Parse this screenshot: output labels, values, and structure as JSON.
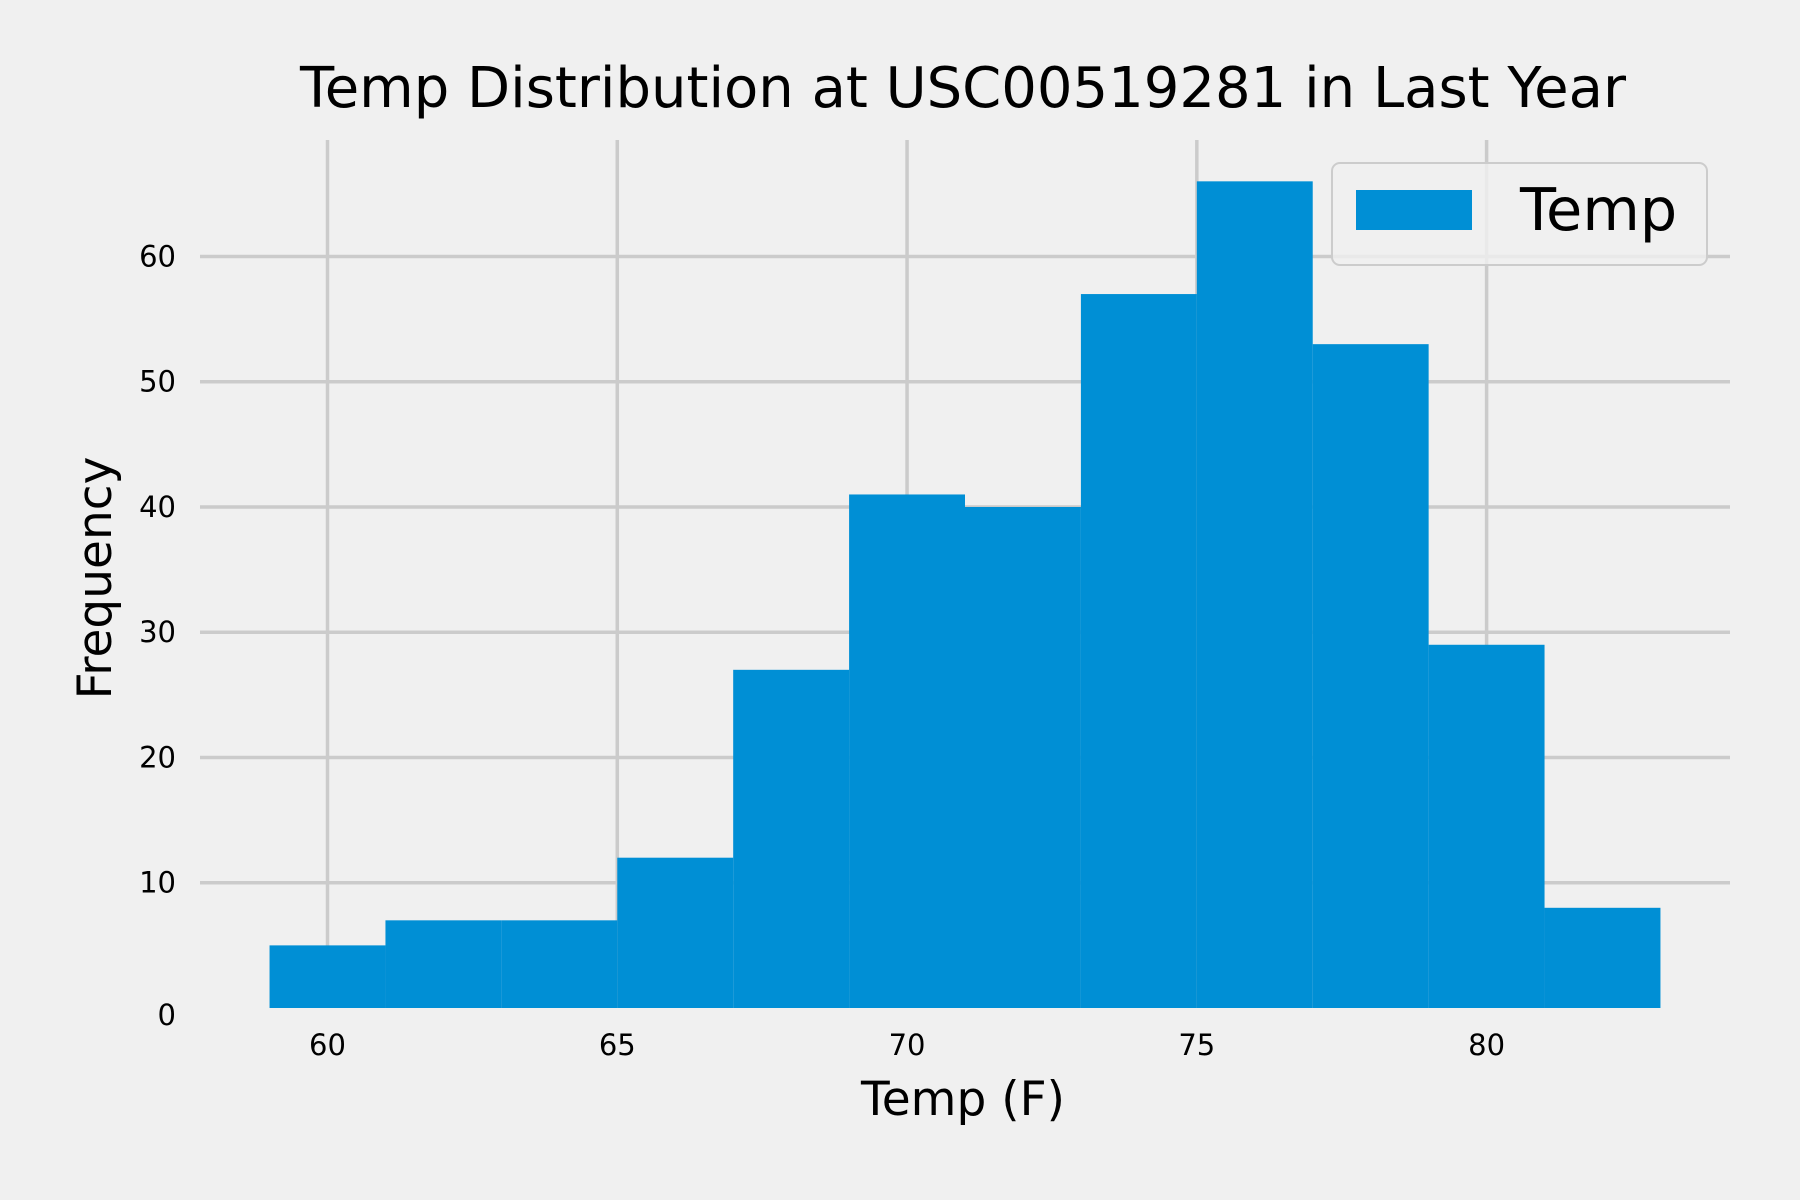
{
  "chart_data": {
    "type": "bar",
    "subtype": "histogram",
    "title": "Temp Distribution at USC00519281 in Last Year",
    "xlabel": "Temp (F)",
    "ylabel": "Frequency",
    "xlim": [
      57.8,
      84.2
    ],
    "ylim": [
      0,
      69.3
    ],
    "xticks": [
      60,
      65,
      70,
      75,
      80
    ],
    "yticks": [
      0,
      10,
      20,
      30,
      40,
      50,
      60
    ],
    "grid": true,
    "legend_position": "top-right",
    "series": [
      {
        "name": "Temp",
        "color": "#008fd5",
        "bin_edges": [
          59,
          61,
          63,
          65,
          67,
          69,
          71,
          73,
          75,
          77,
          79,
          81,
          83
        ],
        "values": [
          5,
          7,
          7,
          12,
          27,
          41,
          40,
          57,
          66,
          53,
          29,
          8
        ]
      }
    ]
  }
}
